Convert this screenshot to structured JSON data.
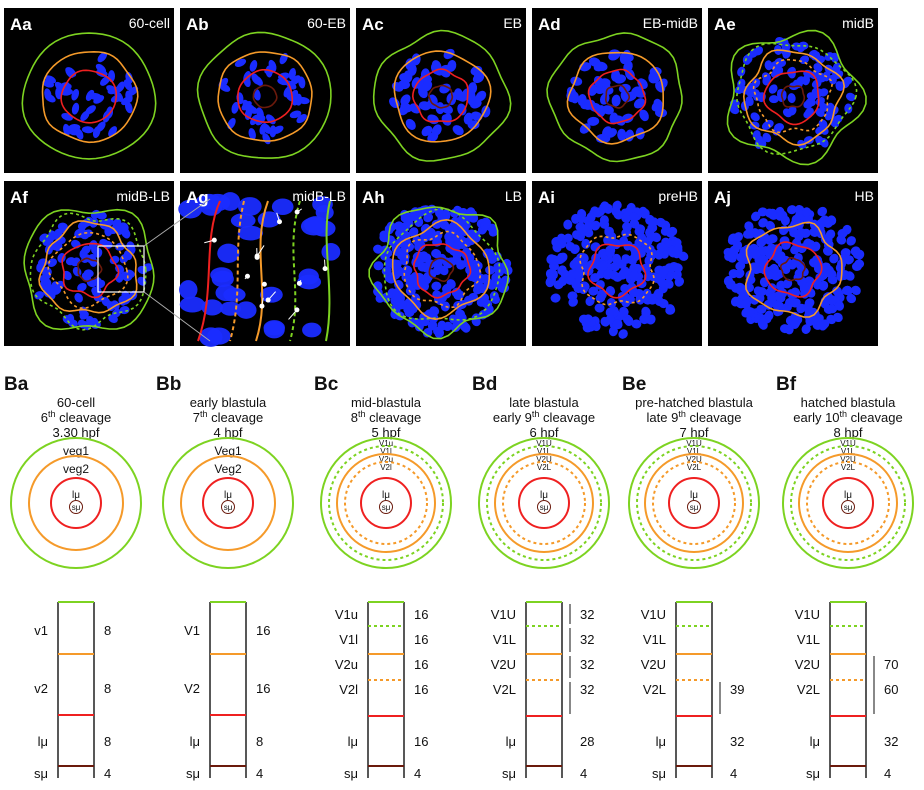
{
  "panels_a": [
    {
      "letter": "Aa",
      "stage": "60-cell",
      "style": "rings",
      "rings": [
        "green",
        "orange",
        "red"
      ],
      "density": "low"
    },
    {
      "letter": "Ab",
      "stage": "60-EB",
      "style": "rings",
      "rings": [
        "green",
        "orange",
        "red",
        "brown"
      ],
      "density": "low"
    },
    {
      "letter": "Ac",
      "stage": "EB",
      "style": "rings",
      "rings": [
        "green",
        "orange",
        "red",
        "brown"
      ],
      "density": "mid"
    },
    {
      "letter": "Ad",
      "stage": "EB-midB",
      "style": "rings",
      "rings": [
        "green",
        "orange",
        "red",
        "brown"
      ],
      "density": "mid"
    },
    {
      "letter": "Ae",
      "stage": "midB",
      "style": "rings",
      "rings": [
        "green",
        "dash-green",
        "orange",
        "dash-orange",
        "red",
        "brown"
      ],
      "density": "high"
    },
    {
      "letter": "Af",
      "stage": "midB-LB",
      "style": "rings-inset",
      "rings": [
        "green",
        "dash-green",
        "orange",
        "dash-orange",
        "red",
        "brown"
      ],
      "density": "high"
    },
    {
      "letter": "Ag",
      "stage": "midB-LB",
      "style": "zoom",
      "rings": [],
      "density": "zoom"
    },
    {
      "letter": "Ah",
      "stage": "LB",
      "style": "rings",
      "rings": [
        "green",
        "dash-green",
        "orange",
        "dash-orange",
        "red",
        "brown"
      ],
      "density": "vhigh"
    },
    {
      "letter": "Ai",
      "stage": "preHB",
      "style": "rings",
      "rings": [
        "dash-orange",
        "red"
      ],
      "density": "vhigh"
    },
    {
      "letter": "Aj",
      "stage": "HB",
      "style": "rings",
      "rings": [
        "orange",
        "red",
        "brown"
      ],
      "density": "vhigh"
    }
  ],
  "panels_b": [
    {
      "letter": "Ba",
      "heading": [
        "60-cell",
        "6th cleavage",
        "3.30 hpf"
      ],
      "circles": [
        {
          "color": "green",
          "dashed": false,
          "label": "veg1"
        },
        {
          "color": "orange",
          "dashed": false,
          "label": "veg2"
        },
        {
          "color": "red",
          "dashed": false,
          "label": ""
        }
      ],
      "rows": [
        {
          "name": "v1",
          "count": "8",
          "line_below": "orange",
          "dashed": false
        },
        {
          "name": "v2",
          "count": "8",
          "line_below": "red",
          "dashed": false
        },
        {
          "name": "lμ",
          "count": "8",
          "line_below": "brown",
          "dashed": false
        },
        {
          "name": "sμ",
          "count": "4",
          "line_below": null,
          "dashed": false
        }
      ],
      "brackets": []
    },
    {
      "letter": "Bb",
      "heading": [
        "early blastula",
        "7th cleavage",
        "4 hpf"
      ],
      "circles": [
        {
          "color": "green",
          "dashed": false,
          "label": "Veg1"
        },
        {
          "color": "orange",
          "dashed": false,
          "label": "Veg2"
        },
        {
          "color": "red",
          "dashed": false,
          "label": ""
        }
      ],
      "rows": [
        {
          "name": "V1",
          "count": "16",
          "line_below": "orange",
          "dashed": false
        },
        {
          "name": "V2",
          "count": "16",
          "line_below": "red",
          "dashed": false
        },
        {
          "name": "lμ",
          "count": "8",
          "line_below": "brown",
          "dashed": false
        },
        {
          "name": "sμ",
          "count": "4",
          "line_below": null,
          "dashed": false
        }
      ],
      "brackets": []
    },
    {
      "letter": "Bc",
      "heading": [
        "mid-blastula",
        "8th cleavage",
        "5 hpf"
      ],
      "circles": [
        {
          "color": "green",
          "dashed": false,
          "label": "V1u"
        },
        {
          "color": "green",
          "dashed": true,
          "label": "V1l"
        },
        {
          "color": "orange",
          "dashed": false,
          "label": "V2u"
        },
        {
          "color": "orange",
          "dashed": true,
          "label": "V2l"
        },
        {
          "color": "red",
          "dashed": false,
          "label": ""
        }
      ],
      "rows": [
        {
          "name": "V1u",
          "count": "16",
          "line_below": "green",
          "dashed": true
        },
        {
          "name": "V1l",
          "count": "16",
          "line_below": "orange",
          "dashed": false
        },
        {
          "name": "V2u",
          "count": "16",
          "line_below": "orange",
          "dashed": true
        },
        {
          "name": "V2l",
          "count": "16",
          "line_below": "red",
          "dashed": false
        },
        {
          "name": "lμ",
          "count": "16",
          "line_below": "brown",
          "dashed": false
        },
        {
          "name": "sμ",
          "count": "4",
          "line_below": null,
          "dashed": false
        }
      ],
      "brackets": []
    },
    {
      "letter": "Bd",
      "heading": [
        "late blastula",
        "early 9th cleavage",
        "6 hpf"
      ],
      "circles": [
        {
          "color": "green",
          "dashed": false,
          "label": "V1U"
        },
        {
          "color": "green",
          "dashed": true,
          "label": "V1L"
        },
        {
          "color": "orange",
          "dashed": false,
          "label": "V2U"
        },
        {
          "color": "orange",
          "dashed": true,
          "label": "V2L"
        },
        {
          "color": "red",
          "dashed": false,
          "label": ""
        }
      ],
      "rows": [
        {
          "name": "V1U",
          "count": "32",
          "line_below": "green",
          "dashed": true
        },
        {
          "name": "V1L",
          "count": "32",
          "line_below": "orange",
          "dashed": false
        },
        {
          "name": "V2U",
          "count": "32",
          "line_below": "orange",
          "dashed": true
        },
        {
          "name": "V2L",
          "count": "32",
          "line_below": "red",
          "dashed": false
        },
        {
          "name": "lμ",
          "count": "28",
          "line_below": "brown",
          "dashed": false
        },
        {
          "name": "sμ",
          "count": "4",
          "line_below": null,
          "dashed": false
        }
      ],
      "brackets": [
        {
          "from": 0,
          "to": 0,
          "label": ""
        },
        {
          "from": 1,
          "to": 1,
          "label": ""
        },
        {
          "from": 2,
          "to": 2,
          "label": ""
        },
        {
          "from": 3,
          "to": 3,
          "label": ""
        }
      ]
    },
    {
      "letter": "Be",
      "heading": [
        "pre-hatched blastula",
        "late 9th cleavage",
        "7 hpf"
      ],
      "circles": [
        {
          "color": "green",
          "dashed": false,
          "label": "V1U"
        },
        {
          "color": "green",
          "dashed": true,
          "label": "V1L"
        },
        {
          "color": "orange",
          "dashed": false,
          "label": "V2U"
        },
        {
          "color": "orange",
          "dashed": true,
          "label": "V2L"
        },
        {
          "color": "red",
          "dashed": false,
          "label": ""
        }
      ],
      "rows": [
        {
          "name": "V1U",
          "count": "",
          "line_below": "green",
          "dashed": true
        },
        {
          "name": "V1L",
          "count": "",
          "line_below": "orange",
          "dashed": false
        },
        {
          "name": "V2U",
          "count": "",
          "line_below": "orange",
          "dashed": true
        },
        {
          "name": "V2L",
          "count": "39",
          "line_below": "red",
          "dashed": false
        },
        {
          "name": "lμ",
          "count": "32",
          "line_below": "brown",
          "dashed": false
        },
        {
          "name": "sμ",
          "count": "4",
          "line_below": null,
          "dashed": false
        }
      ],
      "brackets": [
        {
          "from": 3,
          "to": 3,
          "label": ""
        }
      ]
    },
    {
      "letter": "Bf",
      "heading": [
        "hatched blastula",
        "early 10th cleavage",
        "8 hpf"
      ],
      "circles": [
        {
          "color": "green",
          "dashed": false,
          "label": "V1U"
        },
        {
          "color": "green",
          "dashed": true,
          "label": "V1L"
        },
        {
          "color": "orange",
          "dashed": false,
          "label": "V2U"
        },
        {
          "color": "orange",
          "dashed": true,
          "label": "V2L"
        },
        {
          "color": "red",
          "dashed": false,
          "label": ""
        }
      ],
      "rows": [
        {
          "name": "V1U",
          "count": "",
          "line_below": "green",
          "dashed": true
        },
        {
          "name": "V1L",
          "count": "",
          "line_below": "orange",
          "dashed": false
        },
        {
          "name": "V2U",
          "count": "70",
          "line_below": "orange",
          "dashed": true
        },
        {
          "name": "V2L",
          "count": "60",
          "line_below": "red",
          "dashed": false
        },
        {
          "name": "lμ",
          "count": "32",
          "line_below": "brown",
          "dashed": false
        },
        {
          "name": "sμ",
          "count": "4",
          "line_below": null,
          "dashed": false
        }
      ],
      "brackets": [
        {
          "from": 2,
          "to": 3,
          "label": ""
        }
      ]
    }
  ],
  "inner_labels": {
    "lu": "lμ",
    "su": "sμ"
  },
  "ordinal_suffix": "th",
  "colors": {
    "green": "#7dd321",
    "orange": "#f59a2a",
    "red": "#ef2020",
    "brown": "#6b1a0c",
    "nuclei": "#1a2cff",
    "panel_bg": "#000000",
    "white": "#ffffff",
    "text": "#111111"
  }
}
